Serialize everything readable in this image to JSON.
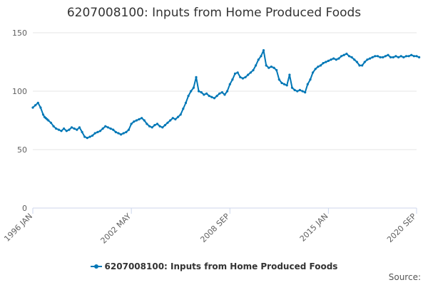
{
  "chart_data": {
    "type": "line",
    "title": "6207008100: Inputs from Home Produced Foods",
    "x_tick_labels": [
      "1996 JAN",
      "2002 MAY",
      "2008 SEP",
      "2015 JAN",
      "2020 SEP"
    ],
    "x_tick_index": [
      0,
      76,
      152,
      228,
      296
    ],
    "y_ticks": [
      0,
      50,
      100,
      150
    ],
    "ylim": [
      0,
      150
    ],
    "grid": true,
    "legend_position": "bottom",
    "series": [
      {
        "name": "6207008100: Inputs from Home Produced Foods",
        "color": "#0077b6",
        "x": [
          0,
          2,
          4,
          6,
          8,
          9,
          10,
          11,
          12,
          14,
          16,
          18,
          20,
          22,
          24,
          26,
          28,
          30,
          32,
          34,
          36,
          38,
          40,
          42,
          44,
          46,
          48,
          50,
          52,
          54,
          56,
          58,
          60,
          62,
          64,
          66,
          68,
          70,
          72,
          74,
          76,
          78,
          80,
          82,
          84,
          86,
          88,
          90,
          92,
          94,
          96,
          98,
          100,
          102,
          104,
          106,
          108,
          110,
          112,
          114,
          116,
          118,
          120,
          122,
          124,
          126,
          128,
          130,
          132,
          134,
          136,
          138,
          140,
          142,
          144,
          146,
          148,
          150,
          152,
          154,
          156,
          158,
          160,
          162,
          164,
          166,
          168,
          170,
          172,
          174,
          176,
          178,
          180,
          182,
          184,
          186,
          188,
          190,
          192,
          194,
          196,
          198,
          200,
          202,
          204,
          206,
          208,
          210,
          212,
          214,
          216,
          218,
          220,
          222,
          224,
          226,
          228,
          230,
          232,
          234,
          236,
          238,
          240,
          242,
          244,
          246,
          248,
          250,
          252,
          254,
          256,
          258,
          260,
          262,
          264,
          266,
          268,
          270,
          272,
          274,
          276,
          278,
          280,
          282,
          284,
          286,
          288,
          290,
          292,
          294,
          296,
          298
        ],
        "values": [
          86,
          88,
          90,
          86,
          80,
          78,
          77,
          76,
          75,
          73,
          70,
          68,
          67,
          66,
          68,
          66,
          67,
          69,
          68,
          67,
          69,
          65,
          61,
          60,
          61,
          62,
          64,
          65,
          66,
          68,
          70,
          69,
          68,
          67,
          65,
          64,
          63,
          64,
          65,
          67,
          72,
          74,
          75,
          76,
          77,
          75,
          72,
          70,
          69,
          71,
          72,
          70,
          69,
          71,
          73,
          75,
          77,
          76,
          78,
          80,
          85,
          90,
          96,
          100,
          103,
          112,
          100,
          99,
          97,
          98,
          96,
          95,
          94,
          96,
          98,
          99,
          97,
          100,
          106,
          110,
          115,
          116,
          112,
          111,
          112,
          114,
          116,
          118,
          122,
          127,
          130,
          135,
          122,
          120,
          121,
          120,
          118,
          110,
          107,
          106,
          105,
          114,
          103,
          101,
          100,
          101,
          100,
          99,
          106,
          110,
          116,
          119,
          121,
          122,
          124,
          125,
          126,
          127,
          128,
          127,
          128,
          130,
          131,
          132,
          130,
          129,
          127,
          125,
          122,
          122,
          125,
          127,
          128,
          129,
          130,
          130,
          129,
          129,
          130,
          131,
          129,
          129,
          130,
          129,
          130,
          129,
          130,
          130,
          131,
          130,
          130,
          129
        ]
      }
    ]
  },
  "source_label": "Source:"
}
